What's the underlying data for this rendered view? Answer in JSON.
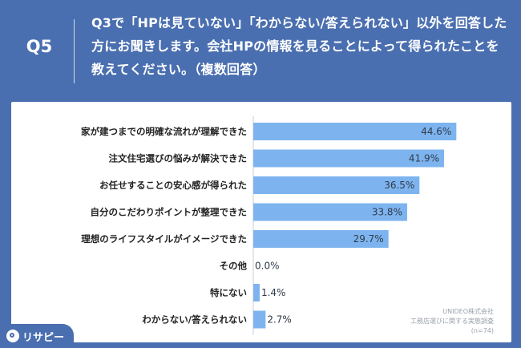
{
  "header": {
    "q_label": "Q5",
    "question": "Q3で「HPは見ていない」「わからない/答えられない」以外を回答した方にお聞きします。会社HPの情報を見ることによって得られたことを教えてください。（複数回答）"
  },
  "chart_data": {
    "type": "bar",
    "orientation": "horizontal",
    "categories": [
      "家が建つまでの明確な流れが理解できた",
      "注文住宅選びの悩みが解決できた",
      "お任せすることの安心感が得られた",
      "自分のこだわりポイントが整理できた",
      "理想のライフスタイルがイメージできた",
      "その他",
      "特にない",
      "わからない/答えられない"
    ],
    "values": [
      44.6,
      41.9,
      36.5,
      33.8,
      29.7,
      0.0,
      1.4,
      2.7
    ],
    "value_labels": [
      "44.6%",
      "41.9%",
      "36.5%",
      "33.8%",
      "29.7%",
      "0.0%",
      "1.4%",
      "2.7%"
    ],
    "xlim": [
      0,
      50
    ],
    "bar_color": "#7db4ef",
    "grid": false
  },
  "source": {
    "line1": "UNIDEO株式会社",
    "line2": "工務店選びに関する実態調査",
    "line3": "(n=74)"
  },
  "logo": {
    "text": "リサピー"
  },
  "colors": {
    "background": "#4a6fb0",
    "panel": "#ffffff",
    "bar": "#7db4ef"
  }
}
